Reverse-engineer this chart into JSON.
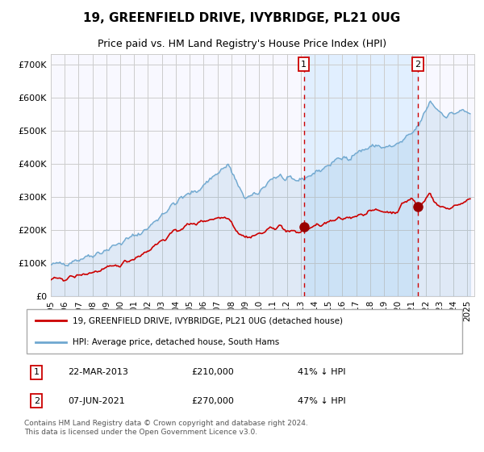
{
  "title": "19, GREENFIELD DRIVE, IVYBRIDGE, PL21 0UG",
  "subtitle": "Price paid vs. HM Land Registry's House Price Index (HPI)",
  "ylabel_ticks": [
    "£0",
    "£100K",
    "£200K",
    "£300K",
    "£400K",
    "£500K",
    "£600K",
    "£700K"
  ],
  "ytick_values": [
    0,
    100000,
    200000,
    300000,
    400000,
    500000,
    600000,
    700000
  ],
  "ylim": [
    0,
    730000
  ],
  "xlim_start": 1995.0,
  "xlim_end": 2025.5,
  "hpi_color": "#6fa8d0",
  "hpi_fill_color": "#ddeeff",
  "price_color": "#cc0000",
  "marker_color": "#990000",
  "dashed_line_color": "#cc0000",
  "grid_color": "#cccccc",
  "plot_bg_color": "#f8f8ff",
  "event1_x": 2013.22,
  "event1_y": 210000,
  "event1_label": "1",
  "event1_date": "22-MAR-2013",
  "event1_price": "£210,000",
  "event1_note": "41% ↓ HPI",
  "event2_x": 2021.44,
  "event2_y": 270000,
  "event2_label": "2",
  "event2_date": "07-JUN-2021",
  "event2_price": "£270,000",
  "event2_note": "47% ↓ HPI",
  "legend_house_label": "19, GREENFIELD DRIVE, IVYBRIDGE, PL21 0UG (detached house)",
  "legend_hpi_label": "HPI: Average price, detached house, South Hams",
  "footnote": "Contains HM Land Registry data © Crown copyright and database right 2024.\nThis data is licensed under the Open Government Licence v3.0.",
  "hpi_anchors_x": [
    1995.0,
    1995.5,
    1996.0,
    1996.5,
    1997.0,
    1997.5,
    1998.0,
    1998.5,
    1999.0,
    1999.5,
    2000.0,
    2000.5,
    2001.0,
    2001.5,
    2002.0,
    2002.5,
    2003.0,
    2003.5,
    2004.0,
    2004.5,
    2005.0,
    2005.5,
    2006.0,
    2006.5,
    2007.0,
    2007.4,
    2007.8,
    2008.2,
    2008.6,
    2009.0,
    2009.4,
    2009.8,
    2010.2,
    2010.6,
    2011.0,
    2011.5,
    2012.0,
    2012.5,
    2013.0,
    2013.25,
    2013.5,
    2014.0,
    2014.5,
    2015.0,
    2015.5,
    2016.0,
    2016.5,
    2017.0,
    2017.5,
    2018.0,
    2018.5,
    2019.0,
    2019.5,
    2020.0,
    2020.5,
    2021.0,
    2021.44,
    2021.8,
    2022.0,
    2022.3,
    2022.6,
    2022.9,
    2023.2,
    2023.5,
    2023.8,
    2024.0,
    2024.3,
    2024.6,
    2024.9,
    2025.2
  ],
  "hpi_anchors_y": [
    93000,
    96000,
    100000,
    106000,
    112000,
    118000,
    126000,
    132000,
    140000,
    150000,
    160000,
    170000,
    182000,
    192000,
    205000,
    225000,
    248000,
    265000,
    282000,
    298000,
    308000,
    318000,
    335000,
    355000,
    372000,
    385000,
    395000,
    360000,
    318000,
    300000,
    298000,
    305000,
    322000,
    345000,
    358000,
    362000,
    348000,
    348000,
    352000,
    356000,
    362000,
    372000,
    382000,
    396000,
    408000,
    416000,
    422000,
    432000,
    442000,
    448000,
    456000,
    448000,
    450000,
    458000,
    472000,
    490000,
    512000,
    540000,
    558000,
    590000,
    575000,
    562000,
    552000,
    546000,
    548000,
    552000,
    556000,
    558000,
    555000,
    552000
  ],
  "price_anchors_x": [
    1995.0,
    1995.5,
    1996.0,
    1996.5,
    1997.0,
    1997.5,
    1998.0,
    1998.5,
    1999.0,
    1999.5,
    2000.0,
    2000.5,
    2001.0,
    2001.5,
    2002.0,
    2002.5,
    2003.0,
    2003.5,
    2004.0,
    2004.5,
    2005.0,
    2005.5,
    2006.0,
    2006.5,
    2007.0,
    2007.4,
    2007.8,
    2008.2,
    2008.6,
    2009.0,
    2009.4,
    2009.8,
    2010.2,
    2010.6,
    2011.0,
    2011.5,
    2012.0,
    2012.5,
    2013.0,
    2013.22,
    2013.5,
    2014.0,
    2014.5,
    2015.0,
    2015.5,
    2016.0,
    2016.5,
    2017.0,
    2017.5,
    2018.0,
    2018.5,
    2019.0,
    2019.5,
    2020.0,
    2020.5,
    2021.0,
    2021.44,
    2021.8,
    2022.0,
    2022.3,
    2022.6,
    2022.9,
    2023.2,
    2023.5,
    2023.8,
    2024.0,
    2024.3,
    2024.6,
    2024.9,
    2025.2
  ],
  "price_anchors_y": [
    48000,
    50000,
    53000,
    57000,
    62000,
    67000,
    72000,
    76000,
    82000,
    88000,
    96000,
    105000,
    115000,
    125000,
    138000,
    153000,
    168000,
    182000,
    196000,
    208000,
    215000,
    220000,
    228000,
    232000,
    236000,
    238000,
    240000,
    210000,
    188000,
    178000,
    180000,
    185000,
    190000,
    198000,
    208000,
    212000,
    196000,
    193000,
    193000,
    210000,
    205000,
    210000,
    215000,
    222000,
    228000,
    233000,
    238000,
    244000,
    250000,
    254000,
    260000,
    256000,
    252000,
    258000,
    285000,
    295000,
    270000,
    282000,
    292000,
    318000,
    285000,
    272000,
    268000,
    264000,
    268000,
    272000,
    276000,
    282000,
    285000,
    288000
  ]
}
